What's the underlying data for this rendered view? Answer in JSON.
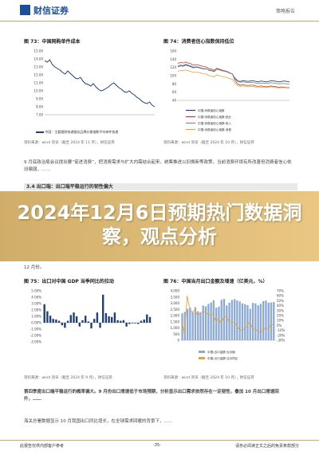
{
  "header": {
    "brand": "财信证券",
    "tag": "策略报告"
  },
  "fig73": {
    "title": "图 73：中国网购单件成本",
    "legend": "中国：主要跟踪快递服务品牌价格指数平均单件快递",
    "source": "资料来源：wind 资讯（截至 2024 年 11 月），财信证券"
  },
  "fig74": {
    "title": "图 74：消费者信心指数保持低位",
    "legend": [
      "中国:消费者信心指数",
      "中国:消费者信心指数:就业",
      "中国:消费者信心指数:收入",
      "中国:消费者信心指数:消费"
    ],
    "source": "资料来源：wind 资讯（截至 2024 年 10 月），财信证券"
  },
  "para1": "9 月底政治局会议提出要“促进消费”，把消费需求与扩大内需结合起来，统筹推进以旧换新等政策，当前消费环境有所改善但消费者信心依旧偏弱，……",
  "section": "3.4 出口端：出口端平稳运行的韧性偏大",
  "para2": "12 月份。",
  "banner": "2024年12月6日预期热门数据洞察，观点分析",
  "fig75": {
    "title": "图 75：出口对中国 GDP 当季同比的拉动",
    "source": "资料来源：wind 资讯（截至 2024 年 9 月），财信证券"
  },
  "fig76": {
    "title": "图 76：中国当月出口金额及增速（亿美元，%）",
    "legend": [
      "中国:出口金额:当月值",
      "中国:出口金额:当月同比"
    ],
    "source": "资料来源：wind 资讯（截至 2024 年 10 月），财信证券"
  },
  "para3": "第四季度出口端平稳运行的概率偏大。9 月份出口增速低于市场预期，分析显示出口需求依然存在一定韧性，叠加 10 月出口增速回升，……",
  "para4": "海关总署数据显示 10 月我国出口同比增长，在全球需求回暖的背景下，……",
  "footer": {
    "left": "此报告仅供内部客户参考",
    "page": "-35-",
    "right": "请务必阅读正文之后的免责条款部分"
  },
  "chart_data": [
    {
      "type": "line",
      "title": "图 73：中国网购单件成本",
      "yticks": [
        "15.00",
        "14.00",
        "13.00",
        "12.00",
        "11.00",
        "10.00",
        "9.00",
        "8.00",
        "7.00"
      ],
      "ylim": [
        7,
        15
      ],
      "values": [
        13.8,
        13.6,
        13.9,
        13.3,
        13.0,
        12.8,
        12.6,
        12.3,
        12.1,
        12.5,
        12.2,
        11.9,
        11.6,
        11.5,
        11.7,
        11.2,
        10.9,
        10.8,
        10.6,
        10.9,
        10.5,
        10.2,
        10.0,
        10.1,
        10.3,
        10.5,
        10.8,
        11.0,
        10.7,
        10.4,
        10.2,
        9.9,
        9.8,
        10.0,
        9.7,
        9.5,
        9.2,
        9.0,
        8.7,
        8.5,
        8.4,
        8.6,
        8.2,
        8.0
      ]
    },
    {
      "type": "line",
      "title": "图 74：消费者信心指数保持低位",
      "yticks": [
        "160",
        "140",
        "120",
        "100",
        "80",
        "60",
        "40"
      ],
      "ylim": [
        40,
        160
      ],
      "series": [
        {
          "name": "中国:消费者信心指数",
          "values": [
            122,
            124,
            123,
            126,
            124,
            122,
            119,
            121,
            120,
            118,
            116,
            117,
            113,
            112,
            110,
            116,
            114,
            112,
            111,
            109,
            106,
            104,
            94,
            88,
            86,
            88,
            87,
            86,
            87,
            88,
            86,
            85,
            87,
            86,
            85,
            86,
            88,
            87,
            86,
            85,
            86,
            87,
            86,
            85
          ]
        },
        {
          "name": "中国:消费者信心指数:就业",
          "values": [
            130,
            132,
            131,
            133,
            131,
            129,
            126,
            127,
            126,
            124,
            122,
            121,
            117,
            116,
            113,
            118,
            116,
            114,
            112,
            110,
            107,
            104,
            89,
            80,
            77,
            78,
            77,
            76,
            77,
            77,
            75,
            74,
            75,
            74,
            73,
            74,
            75,
            74,
            73,
            72,
            73,
            72,
            71,
            71
          ]
        },
        {
          "name": "中国:消费者信心指数:收入",
          "values": [
            124,
            126,
            125,
            128,
            126,
            124,
            121,
            122,
            121,
            119,
            117,
            117,
            114,
            113,
            111,
            116,
            114,
            112,
            111,
            109,
            106,
            104,
            92,
            86,
            84,
            85,
            84,
            83,
            84,
            84,
            82,
            81,
            82,
            82,
            81,
            82,
            83,
            82,
            81,
            80,
            81,
            81,
            80,
            80
          ]
        },
        {
          "name": "中国:消费者信心指数:消费",
          "values": [
            110,
            113,
            112,
            114,
            112,
            110,
            108,
            109,
            108,
            106,
            104,
            104,
            100,
            99,
            97,
            102,
            100,
            98,
            97,
            95,
            93,
            91,
            82,
            76,
            74,
            75,
            74,
            73,
            74,
            74,
            72,
            71,
            72,
            72,
            71,
            72,
            73,
            72,
            71,
            70,
            71,
            71,
            70,
            70
          ]
        }
      ]
    },
    {
      "type": "bar",
      "title": "图 75：出口对中国 GDP 当季同比的拉动",
      "yticks": [
        "5.00%",
        "4.00%",
        "3.00%",
        "2.00%",
        "1.00%",
        "0.00%",
        "-1.00%",
        "-2.00%",
        "-3.00%"
      ],
      "ylim": [
        -3,
        5
      ],
      "values": [
        2.9,
        1.8,
        1.1,
        0.6,
        0.5,
        0.3,
        -0.4,
        -0.8,
        0.3,
        1.2,
        1.6,
        1.0,
        -0.6,
        0.4,
        1.1,
        0.2,
        -0.9,
        0.6,
        1.6,
        -0.8,
        4.4,
        1.5,
        1.0,
        0.9,
        1.6,
        0.4,
        0.3,
        0.4,
        -0.6,
        -0.2,
        -0.1,
        -0.1,
        -0.2,
        0.3,
        0.5,
        1.3,
        0.9
      ]
    },
    {
      "type": "bar",
      "title": "图 76：中国当月出口金额及增速（亿美元，%）",
      "yticks": [
        "4,000",
        "3,500",
        "3,000",
        "2,500",
        "2,000",
        "1,500",
        "1,000",
        "500",
        "0"
      ],
      "y2ticks": [
        "70%",
        "60%",
        "50%",
        "40%",
        "30%",
        "20%",
        "10%",
        "0%",
        "-10%",
        "-20%",
        "-30%"
      ],
      "ylim": [
        0,
        4000
      ],
      "y2lim": [
        -30,
        70
      ],
      "bars": [
        2180,
        2300,
        2540,
        2640,
        2280,
        2680,
        2350,
        2250,
        2810,
        2750,
        2950,
        3060,
        3240,
        2640,
        2720,
        3270,
        3350,
        2820,
        3040,
        3260,
        3330,
        3220,
        3140,
        2980,
        2930,
        2840,
        2550,
        3020,
        2980,
        2830,
        2950,
        3170,
        3210,
        3030,
        3060,
        3090
      ],
      "line": [
        9.0,
        -17.0,
        60.0,
        32.0,
        27.0,
        32.0,
        19.0,
        25.0,
        28.0,
        27.0,
        22.0,
        21.0,
        24.0,
        6.0,
        14.0,
        4.0,
        17.0,
        18.0,
        7.0,
        7.0,
        6.0,
        -0.3,
        -9.0,
        -10.0,
        -7.0,
        -1.0,
        8.0,
        -7.0,
        -7.0,
        -12.0,
        -14.0,
        -9.0,
        -6.0,
        -6.0,
        0.5,
        2.3
      ]
    }
  ]
}
